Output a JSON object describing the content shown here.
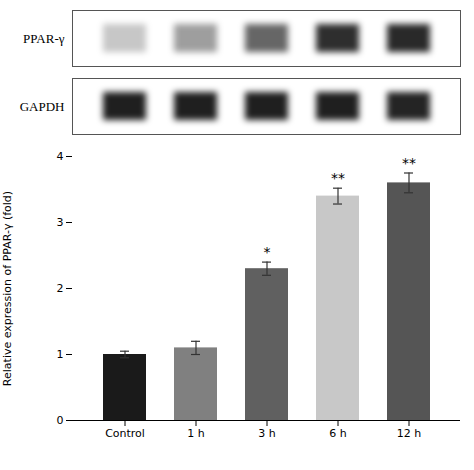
{
  "chart_data": [
    {
      "type": "blot",
      "ylabel": "PPAR-γ",
      "categories": [
        null,
        null,
        null,
        null,
        null
      ],
      "values": [
        0.22,
        0.38,
        0.6,
        0.82,
        0.84
      ],
      "tick_labels": false
    },
    {
      "type": "blot",
      "ylabel": "GAPDH",
      "categories": [
        null,
        null,
        null,
        null,
        null
      ],
      "values": [
        0.88,
        0.88,
        0.88,
        0.88,
        0.86
      ],
      "tick_labels": false
    },
    {
      "type": "bar",
      "categories": [
        "Control",
        "1 h",
        "3 h",
        "6 h",
        "12 h"
      ],
      "values": [
        1.0,
        1.1,
        2.3,
        3.4,
        3.6
      ],
      "errors": [
        0.05,
        0.1,
        0.1,
        0.12,
        0.15
      ],
      "colors": [
        "#1a1a1a",
        "#808080",
        "#606060",
        "#c8c8c8",
        "#555555"
      ],
      "significance": [
        null,
        null,
        "*",
        "**",
        "**"
      ],
      "ylabel": "Relative expression of PPAR-γ (fold)",
      "ylim": [
        0,
        4
      ],
      "yticks": [
        0,
        1,
        2,
        3,
        4
      ],
      "grid": false
    }
  ]
}
